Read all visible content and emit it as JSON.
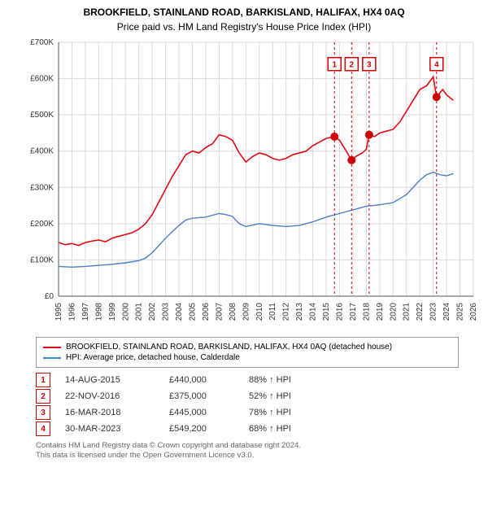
{
  "title": "BROOKFIELD, STAINLAND ROAD, BARKISLAND, HALIFAX, HX4 0AQ",
  "subtitle": "Price paid vs. HM Land Registry's House Price Index (HPI)",
  "chart": {
    "type": "line",
    "background_color": "#ffffff",
    "plot_bg": "#ffffff",
    "grid_color": "#d9d9d9",
    "axis_color": "#555555",
    "xlim": [
      1995,
      2026
    ],
    "ylim": [
      0,
      700000
    ],
    "ytick_step": 100000,
    "yticks": [
      {
        "v": 0,
        "label": "£0"
      },
      {
        "v": 100000,
        "label": "£100K"
      },
      {
        "v": 200000,
        "label": "£200K"
      },
      {
        "v": 300000,
        "label": "£300K"
      },
      {
        "v": 400000,
        "label": "£400K"
      },
      {
        "v": 500000,
        "label": "£500K"
      },
      {
        "v": 600000,
        "label": "£600K"
      },
      {
        "v": 700000,
        "label": "£700K"
      }
    ],
    "xticks": [
      1995,
      1996,
      1997,
      1998,
      1999,
      2000,
      2001,
      2002,
      2003,
      2004,
      2005,
      2006,
      2007,
      2008,
      2009,
      2010,
      2011,
      2012,
      2013,
      2014,
      2015,
      2016,
      2017,
      2018,
      2019,
      2020,
      2021,
      2022,
      2023,
      2024,
      2025,
      2026
    ],
    "label_fontsize": 10,
    "series": [
      {
        "name": "BROOKFIELD, STAINLAND ROAD, BARKISLAND, HALIFAX, HX4 0AQ (detached house)",
        "color": "#e30613",
        "line_width": 1.6,
        "data": [
          [
            1995,
            148000
          ],
          [
            1995.5,
            142000
          ],
          [
            1996,
            145000
          ],
          [
            1996.5,
            140000
          ],
          [
            1997,
            148000
          ],
          [
            1997.5,
            152000
          ],
          [
            1998,
            155000
          ],
          [
            1998.5,
            150000
          ],
          [
            1999,
            160000
          ],
          [
            1999.5,
            165000
          ],
          [
            2000,
            170000
          ],
          [
            2000.5,
            175000
          ],
          [
            2001,
            185000
          ],
          [
            2001.5,
            200000
          ],
          [
            2002,
            225000
          ],
          [
            2002.5,
            260000
          ],
          [
            2003,
            295000
          ],
          [
            2003.5,
            330000
          ],
          [
            2004,
            360000
          ],
          [
            2004.5,
            390000
          ],
          [
            2005,
            400000
          ],
          [
            2005.5,
            395000
          ],
          [
            2006,
            410000
          ],
          [
            2006.5,
            420000
          ],
          [
            2007,
            445000
          ],
          [
            2007.5,
            440000
          ],
          [
            2008,
            430000
          ],
          [
            2008.5,
            395000
          ],
          [
            2009,
            370000
          ],
          [
            2009.5,
            385000
          ],
          [
            2010,
            395000
          ],
          [
            2010.5,
            390000
          ],
          [
            2011,
            380000
          ],
          [
            2011.5,
            375000
          ],
          [
            2012,
            380000
          ],
          [
            2012.5,
            390000
          ],
          [
            2013,
            395000
          ],
          [
            2013.5,
            400000
          ],
          [
            2014,
            415000
          ],
          [
            2014.5,
            425000
          ],
          [
            2015,
            435000
          ],
          [
            2015.6,
            440000
          ],
          [
            2016,
            430000
          ],
          [
            2016.5,
            400000
          ],
          [
            2016.9,
            375000
          ],
          [
            2017.2,
            385000
          ],
          [
            2017.7,
            395000
          ],
          [
            2018,
            405000
          ],
          [
            2018.2,
            445000
          ],
          [
            2018.6,
            440000
          ],
          [
            2019,
            450000
          ],
          [
            2019.5,
            455000
          ],
          [
            2020,
            460000
          ],
          [
            2020.5,
            480000
          ],
          [
            2021,
            510000
          ],
          [
            2021.5,
            540000
          ],
          [
            2022,
            570000
          ],
          [
            2022.5,
            580000
          ],
          [
            2023,
            605000
          ],
          [
            2023.25,
            549200
          ],
          [
            2023.7,
            570000
          ],
          [
            2024,
            555000
          ],
          [
            2024.5,
            540000
          ]
        ]
      },
      {
        "name": "HPI: Average price, detached house, Calderdale",
        "color": "#4a7ec8",
        "line_width": 1.4,
        "data": [
          [
            1995,
            82000
          ],
          [
            1996,
            80000
          ],
          [
            1997,
            82000
          ],
          [
            1998,
            85000
          ],
          [
            1999,
            88000
          ],
          [
            2000,
            92000
          ],
          [
            2001,
            98000
          ],
          [
            2001.5,
            105000
          ],
          [
            2002,
            120000
          ],
          [
            2002.5,
            140000
          ],
          [
            2003,
            160000
          ],
          [
            2003.5,
            178000
          ],
          [
            2004,
            195000
          ],
          [
            2004.5,
            210000
          ],
          [
            2005,
            215000
          ],
          [
            2006,
            218000
          ],
          [
            2007,
            228000
          ],
          [
            2007.5,
            225000
          ],
          [
            2008,
            220000
          ],
          [
            2008.5,
            200000
          ],
          [
            2009,
            192000
          ],
          [
            2010,
            200000
          ],
          [
            2011,
            195000
          ],
          [
            2012,
            192000
          ],
          [
            2013,
            195000
          ],
          [
            2014,
            205000
          ],
          [
            2015,
            218000
          ],
          [
            2016,
            228000
          ],
          [
            2017,
            238000
          ],
          [
            2018,
            248000
          ],
          [
            2019,
            252000
          ],
          [
            2020,
            258000
          ],
          [
            2021,
            280000
          ],
          [
            2021.5,
            300000
          ],
          [
            2022,
            320000
          ],
          [
            2022.5,
            335000
          ],
          [
            2023,
            342000
          ],
          [
            2023.5,
            335000
          ],
          [
            2024,
            332000
          ],
          [
            2024.5,
            338000
          ]
        ]
      }
    ],
    "sale_markers": [
      {
        "num": "1",
        "x": 2015.62,
        "y": 440000
      },
      {
        "num": "2",
        "x": 2016.9,
        "y": 375000
      },
      {
        "num": "3",
        "x": 2018.21,
        "y": 445000
      },
      {
        "num": "4",
        "x": 2023.25,
        "y": 549200
      }
    ],
    "marker_color": "#cc0000",
    "marker_radius": 5,
    "vline_color": "#cc0000",
    "vline_dash": "3,3",
    "numbox_border": "#cc0000",
    "numbox_text": "#cc0000",
    "numbox_y": 640000
  },
  "legend": {
    "items": [
      {
        "color": "#e30613",
        "label": "BROOKFIELD, STAINLAND ROAD, BARKISLAND, HALIFAX, HX4 0AQ (detached house)"
      },
      {
        "color": "#4a7ec8",
        "label": "HPI: Average price, detached house, Calderdale"
      }
    ]
  },
  "sales": [
    {
      "num": "1",
      "date": "14-AUG-2015",
      "price": "£440,000",
      "pct": "88% ↑ HPI"
    },
    {
      "num": "2",
      "date": "22-NOV-2016",
      "price": "£375,000",
      "pct": "52% ↑ HPI"
    },
    {
      "num": "3",
      "date": "16-MAR-2018",
      "price": "£445,000",
      "pct": "78% ↑ HPI"
    },
    {
      "num": "4",
      "date": "30-MAR-2023",
      "price": "£549,200",
      "pct": "68% ↑ HPI"
    }
  ],
  "footer1": "Contains HM Land Registry data © Crown copyright and database right 2024.",
  "footer2": "This data is licensed under the Open Government Licence v3.0."
}
